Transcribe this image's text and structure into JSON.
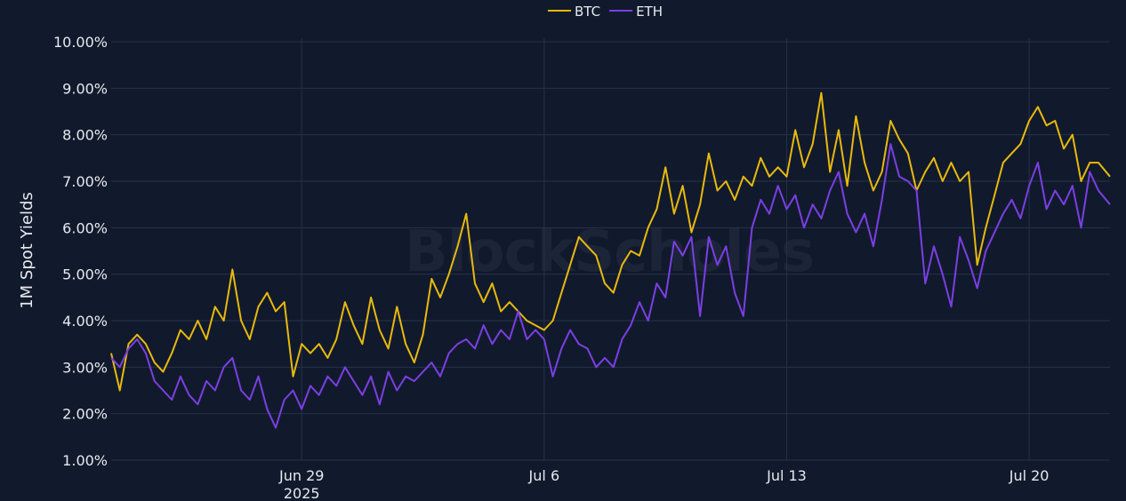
{
  "chart_data": {
    "type": "line",
    "ylabel": "1M Spot Yields",
    "watermark": "BlockScholes",
    "x_range": [
      "2025-06-23T12:00",
      "2025-07-22T08:00"
    ],
    "ylim": [
      1,
      10
    ],
    "y_ticks": [
      1,
      2,
      3,
      4,
      5,
      6,
      7,
      8,
      9,
      10
    ],
    "y_tick_labels": [
      "1.00%",
      "2.00%",
      "3.00%",
      "4.00%",
      "5.00%",
      "6.00%",
      "7.00%",
      "8.00%",
      "9.00%",
      "10.00%"
    ],
    "x_ticks": [
      {
        "date": "2025-06-29",
        "label": "Jun 29",
        "sublabel": "2025"
      },
      {
        "date": "2025-07-06",
        "label": "Jul 6",
        "sublabel": ""
      },
      {
        "date": "2025-07-13",
        "label": "Jul 13",
        "sublabel": ""
      },
      {
        "date": "2025-07-20",
        "label": "Jul 20",
        "sublabel": ""
      }
    ],
    "grid": true,
    "legend_position": "top-center",
    "series": [
      {
        "name": "BTC",
        "color": "#e8b90e",
        "points": [
          [
            "2025-06-23T12:00",
            3.3
          ],
          [
            "2025-06-23T18:00",
            2.5
          ],
          [
            "2025-06-24T00:00",
            3.5
          ],
          [
            "2025-06-24T06:00",
            3.7
          ],
          [
            "2025-06-24T12:00",
            3.5
          ],
          [
            "2025-06-24T18:00",
            3.1
          ],
          [
            "2025-06-25T00:00",
            2.9
          ],
          [
            "2025-06-25T06:00",
            3.3
          ],
          [
            "2025-06-25T12:00",
            3.8
          ],
          [
            "2025-06-25T18:00",
            3.6
          ],
          [
            "2025-06-26T00:00",
            4.0
          ],
          [
            "2025-06-26T06:00",
            3.6
          ],
          [
            "2025-06-26T12:00",
            4.3
          ],
          [
            "2025-06-26T18:00",
            4.0
          ],
          [
            "2025-06-27T00:00",
            5.1
          ],
          [
            "2025-06-27T06:00",
            4.0
          ],
          [
            "2025-06-27T12:00",
            3.6
          ],
          [
            "2025-06-27T18:00",
            4.3
          ],
          [
            "2025-06-28T00:00",
            4.6
          ],
          [
            "2025-06-28T06:00",
            4.2
          ],
          [
            "2025-06-28T12:00",
            4.4
          ],
          [
            "2025-06-28T18:00",
            2.8
          ],
          [
            "2025-06-29T00:00",
            3.5
          ],
          [
            "2025-06-29T06:00",
            3.3
          ],
          [
            "2025-06-29T12:00",
            3.5
          ],
          [
            "2025-06-29T18:00",
            3.2
          ],
          [
            "2025-06-30T00:00",
            3.6
          ],
          [
            "2025-06-30T06:00",
            4.4
          ],
          [
            "2025-06-30T12:00",
            3.9
          ],
          [
            "2025-06-30T18:00",
            3.5
          ],
          [
            "2025-07-01T00:00",
            4.5
          ],
          [
            "2025-07-01T06:00",
            3.8
          ],
          [
            "2025-07-01T12:00",
            3.4
          ],
          [
            "2025-07-01T18:00",
            4.3
          ],
          [
            "2025-07-02T00:00",
            3.5
          ],
          [
            "2025-07-02T06:00",
            3.1
          ],
          [
            "2025-07-02T12:00",
            3.7
          ],
          [
            "2025-07-02T18:00",
            4.9
          ],
          [
            "2025-07-03T00:00",
            4.5
          ],
          [
            "2025-07-03T06:00",
            5.0
          ],
          [
            "2025-07-03T12:00",
            5.6
          ],
          [
            "2025-07-03T18:00",
            6.3
          ],
          [
            "2025-07-04T00:00",
            4.8
          ],
          [
            "2025-07-04T06:00",
            4.4
          ],
          [
            "2025-07-04T12:00",
            4.8
          ],
          [
            "2025-07-04T18:00",
            4.2
          ],
          [
            "2025-07-05T00:00",
            4.4
          ],
          [
            "2025-07-05T06:00",
            4.2
          ],
          [
            "2025-07-05T12:00",
            4.0
          ],
          [
            "2025-07-05T18:00",
            3.9
          ],
          [
            "2025-07-06T00:00",
            3.8
          ],
          [
            "2025-07-06T06:00",
            4.0
          ],
          [
            "2025-07-06T12:00",
            4.6
          ],
          [
            "2025-07-06T18:00",
            5.2
          ],
          [
            "2025-07-07T00:00",
            5.8
          ],
          [
            "2025-07-07T06:00",
            5.6
          ],
          [
            "2025-07-07T12:00",
            5.4
          ],
          [
            "2025-07-07T18:00",
            4.8
          ],
          [
            "2025-07-08T00:00",
            4.6
          ],
          [
            "2025-07-08T06:00",
            5.2
          ],
          [
            "2025-07-08T12:00",
            5.5
          ],
          [
            "2025-07-08T18:00",
            5.4
          ],
          [
            "2025-07-09T00:00",
            6.0
          ],
          [
            "2025-07-09T06:00",
            6.4
          ],
          [
            "2025-07-09T12:00",
            7.3
          ],
          [
            "2025-07-09T18:00",
            6.3
          ],
          [
            "2025-07-10T00:00",
            6.9
          ],
          [
            "2025-07-10T06:00",
            5.9
          ],
          [
            "2025-07-10T12:00",
            6.5
          ],
          [
            "2025-07-10T18:00",
            7.6
          ],
          [
            "2025-07-11T00:00",
            6.8
          ],
          [
            "2025-07-11T06:00",
            7.0
          ],
          [
            "2025-07-11T12:00",
            6.6
          ],
          [
            "2025-07-11T18:00",
            7.1
          ],
          [
            "2025-07-12T00:00",
            6.9
          ],
          [
            "2025-07-12T06:00",
            7.5
          ],
          [
            "2025-07-12T12:00",
            7.1
          ],
          [
            "2025-07-12T18:00",
            7.3
          ],
          [
            "2025-07-13T00:00",
            7.1
          ],
          [
            "2025-07-13T06:00",
            8.1
          ],
          [
            "2025-07-13T12:00",
            7.3
          ],
          [
            "2025-07-13T18:00",
            7.8
          ],
          [
            "2025-07-14T00:00",
            8.9
          ],
          [
            "2025-07-14T06:00",
            7.2
          ],
          [
            "2025-07-14T12:00",
            8.1
          ],
          [
            "2025-07-14T18:00",
            6.9
          ],
          [
            "2025-07-15T00:00",
            8.4
          ],
          [
            "2025-07-15T06:00",
            7.4
          ],
          [
            "2025-07-15T12:00",
            6.8
          ],
          [
            "2025-07-15T18:00",
            7.2
          ],
          [
            "2025-07-16T00:00",
            8.3
          ],
          [
            "2025-07-16T06:00",
            7.9
          ],
          [
            "2025-07-16T12:00",
            7.6
          ],
          [
            "2025-07-16T18:00",
            6.8
          ],
          [
            "2025-07-17T00:00",
            7.2
          ],
          [
            "2025-07-17T06:00",
            7.5
          ],
          [
            "2025-07-17T12:00",
            7.0
          ],
          [
            "2025-07-17T18:00",
            7.4
          ],
          [
            "2025-07-18T00:00",
            7.0
          ],
          [
            "2025-07-18T06:00",
            7.2
          ],
          [
            "2025-07-18T12:00",
            5.2
          ],
          [
            "2025-07-18T18:00",
            6.0
          ],
          [
            "2025-07-19T00:00",
            6.7
          ],
          [
            "2025-07-19T06:00",
            7.4
          ],
          [
            "2025-07-19T12:00",
            7.6
          ],
          [
            "2025-07-19T18:00",
            7.8
          ],
          [
            "2025-07-20T00:00",
            8.3
          ],
          [
            "2025-07-20T06:00",
            8.6
          ],
          [
            "2025-07-20T12:00",
            8.2
          ],
          [
            "2025-07-20T18:00",
            8.3
          ],
          [
            "2025-07-21T00:00",
            7.7
          ],
          [
            "2025-07-21T06:00",
            8.0
          ],
          [
            "2025-07-21T12:00",
            7.0
          ],
          [
            "2025-07-21T18:00",
            7.4
          ],
          [
            "2025-07-22T00:00",
            7.4
          ],
          [
            "2025-07-22T08:00",
            7.1
          ]
        ]
      },
      {
        "name": "ETH",
        "color": "#7b3fe4",
        "points": [
          [
            "2025-06-23T12:00",
            3.2
          ],
          [
            "2025-06-23T18:00",
            3.0
          ],
          [
            "2025-06-24T00:00",
            3.4
          ],
          [
            "2025-06-24T06:00",
            3.6
          ],
          [
            "2025-06-24T12:00",
            3.3
          ],
          [
            "2025-06-24T18:00",
            2.7
          ],
          [
            "2025-06-25T00:00",
            2.5
          ],
          [
            "2025-06-25T06:00",
            2.3
          ],
          [
            "2025-06-25T12:00",
            2.8
          ],
          [
            "2025-06-25T18:00",
            2.4
          ],
          [
            "2025-06-26T00:00",
            2.2
          ],
          [
            "2025-06-26T06:00",
            2.7
          ],
          [
            "2025-06-26T12:00",
            2.5
          ],
          [
            "2025-06-26T18:00",
            3.0
          ],
          [
            "2025-06-27T00:00",
            3.2
          ],
          [
            "2025-06-27T06:00",
            2.5
          ],
          [
            "2025-06-27T12:00",
            2.3
          ],
          [
            "2025-06-27T18:00",
            2.8
          ],
          [
            "2025-06-28T00:00",
            2.1
          ],
          [
            "2025-06-28T06:00",
            1.7
          ],
          [
            "2025-06-28T12:00",
            2.3
          ],
          [
            "2025-06-28T18:00",
            2.5
          ],
          [
            "2025-06-29T00:00",
            2.1
          ],
          [
            "2025-06-29T06:00",
            2.6
          ],
          [
            "2025-06-29T12:00",
            2.4
          ],
          [
            "2025-06-29T18:00",
            2.8
          ],
          [
            "2025-06-30T00:00",
            2.6
          ],
          [
            "2025-06-30T06:00",
            3.0
          ],
          [
            "2025-06-30T12:00",
            2.7
          ],
          [
            "2025-06-30T18:00",
            2.4
          ],
          [
            "2025-07-01T00:00",
            2.8
          ],
          [
            "2025-07-01T06:00",
            2.2
          ],
          [
            "2025-07-01T12:00",
            2.9
          ],
          [
            "2025-07-01T18:00",
            2.5
          ],
          [
            "2025-07-02T00:00",
            2.8
          ],
          [
            "2025-07-02T06:00",
            2.7
          ],
          [
            "2025-07-02T12:00",
            2.9
          ],
          [
            "2025-07-02T18:00",
            3.1
          ],
          [
            "2025-07-03T00:00",
            2.8
          ],
          [
            "2025-07-03T06:00",
            3.3
          ],
          [
            "2025-07-03T12:00",
            3.5
          ],
          [
            "2025-07-03T18:00",
            3.6
          ],
          [
            "2025-07-04T00:00",
            3.4
          ],
          [
            "2025-07-04T06:00",
            3.9
          ],
          [
            "2025-07-04T12:00",
            3.5
          ],
          [
            "2025-07-04T18:00",
            3.8
          ],
          [
            "2025-07-05T00:00",
            3.6
          ],
          [
            "2025-07-05T06:00",
            4.2
          ],
          [
            "2025-07-05T12:00",
            3.6
          ],
          [
            "2025-07-05T18:00",
            3.8
          ],
          [
            "2025-07-06T00:00",
            3.6
          ],
          [
            "2025-07-06T06:00",
            2.8
          ],
          [
            "2025-07-06T12:00",
            3.4
          ],
          [
            "2025-07-06T18:00",
            3.8
          ],
          [
            "2025-07-07T00:00",
            3.5
          ],
          [
            "2025-07-07T06:00",
            3.4
          ],
          [
            "2025-07-07T12:00",
            3.0
          ],
          [
            "2025-07-07T18:00",
            3.2
          ],
          [
            "2025-07-08T00:00",
            3.0
          ],
          [
            "2025-07-08T06:00",
            3.6
          ],
          [
            "2025-07-08T12:00",
            3.9
          ],
          [
            "2025-07-08T18:00",
            4.4
          ],
          [
            "2025-07-09T00:00",
            4.0
          ],
          [
            "2025-07-09T06:00",
            4.8
          ],
          [
            "2025-07-09T12:00",
            4.5
          ],
          [
            "2025-07-09T18:00",
            5.7
          ],
          [
            "2025-07-10T00:00",
            5.4
          ],
          [
            "2025-07-10T06:00",
            5.8
          ],
          [
            "2025-07-10T12:00",
            4.1
          ],
          [
            "2025-07-10T18:00",
            5.8
          ],
          [
            "2025-07-11T00:00",
            5.2
          ],
          [
            "2025-07-11T06:00",
            5.6
          ],
          [
            "2025-07-11T12:00",
            4.6
          ],
          [
            "2025-07-11T18:00",
            4.1
          ],
          [
            "2025-07-12T00:00",
            6.0
          ],
          [
            "2025-07-12T06:00",
            6.6
          ],
          [
            "2025-07-12T12:00",
            6.3
          ],
          [
            "2025-07-12T18:00",
            6.9
          ],
          [
            "2025-07-13T00:00",
            6.4
          ],
          [
            "2025-07-13T06:00",
            6.7
          ],
          [
            "2025-07-13T12:00",
            6.0
          ],
          [
            "2025-07-13T18:00",
            6.5
          ],
          [
            "2025-07-14T00:00",
            6.2
          ],
          [
            "2025-07-14T06:00",
            6.8
          ],
          [
            "2025-07-14T12:00",
            7.2
          ],
          [
            "2025-07-14T18:00",
            6.3
          ],
          [
            "2025-07-15T00:00",
            5.9
          ],
          [
            "2025-07-15T06:00",
            6.3
          ],
          [
            "2025-07-15T12:00",
            5.6
          ],
          [
            "2025-07-15T18:00",
            6.6
          ],
          [
            "2025-07-16T00:00",
            7.8
          ],
          [
            "2025-07-16T06:00",
            7.1
          ],
          [
            "2025-07-16T12:00",
            7.0
          ],
          [
            "2025-07-16T18:00",
            6.8
          ],
          [
            "2025-07-17T00:00",
            4.8
          ],
          [
            "2025-07-17T06:00",
            5.6
          ],
          [
            "2025-07-17T12:00",
            5.0
          ],
          [
            "2025-07-17T18:00",
            4.3
          ],
          [
            "2025-07-18T00:00",
            5.8
          ],
          [
            "2025-07-18T06:00",
            5.3
          ],
          [
            "2025-07-18T12:00",
            4.7
          ],
          [
            "2025-07-18T18:00",
            5.5
          ],
          [
            "2025-07-19T00:00",
            5.9
          ],
          [
            "2025-07-19T06:00",
            6.3
          ],
          [
            "2025-07-19T12:00",
            6.6
          ],
          [
            "2025-07-19T18:00",
            6.2
          ],
          [
            "2025-07-20T00:00",
            6.9
          ],
          [
            "2025-07-20T06:00",
            7.4
          ],
          [
            "2025-07-20T12:00",
            6.4
          ],
          [
            "2025-07-20T18:00",
            6.8
          ],
          [
            "2025-07-21T00:00",
            6.5
          ],
          [
            "2025-07-21T06:00",
            6.9
          ],
          [
            "2025-07-21T12:00",
            6.0
          ],
          [
            "2025-07-21T18:00",
            7.2
          ],
          [
            "2025-07-22T00:00",
            6.8
          ],
          [
            "2025-07-22T08:00",
            6.5
          ]
        ]
      }
    ]
  }
}
